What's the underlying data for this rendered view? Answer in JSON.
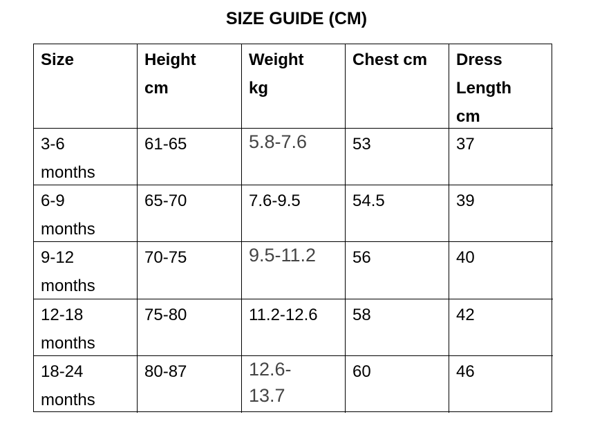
{
  "header": {
    "title": "SIZE GUIDE (CM)"
  },
  "table": {
    "columns": [
      "Size",
      "Height\ncm",
      "Weight\nkg",
      "Chest cm",
      "Dress\nLength\ncm"
    ],
    "rows": [
      [
        "3-6\nmonths",
        "61-65",
        "5.8-7.6",
        "53",
        "37"
      ],
      [
        "6-9\nmonths",
        "65-70",
        "7.6-9.5",
        "54.5",
        "39"
      ],
      [
        "9-12\nmonths",
        "70-75",
        "9.5-11.2",
        "56",
        "40"
      ],
      [
        "12-18\nmonths",
        "75-80",
        "11.2-12.6",
        "58",
        "42"
      ],
      [
        "18-24\nmonths",
        "80-87",
        "12.6-\n13.7",
        "60",
        "46"
      ]
    ]
  }
}
